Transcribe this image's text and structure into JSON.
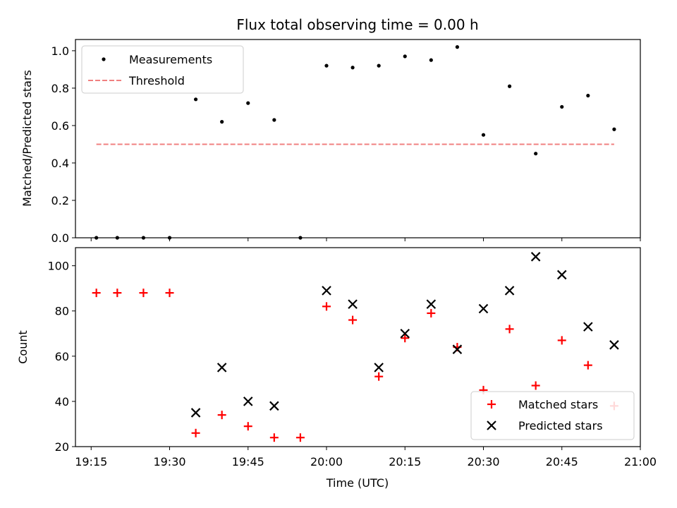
{
  "chart_data": [
    {
      "type": "scatter",
      "title": "Flux total observing time = 0.00 h",
      "xlabel": "",
      "ylabel": "Matched/Predicted stars",
      "ylim": [
        0,
        1.06
      ],
      "yticks": [
        "0.0",
        "0.2",
        "0.4",
        "0.6",
        "0.8",
        "1.0"
      ],
      "grid": false,
      "legend_position": "top-left",
      "colors": {
        "measurements": "#000000",
        "threshold": "#f08080"
      },
      "series": [
        {
          "name": "Measurements",
          "marker": "dot",
          "x": [
            "19:16",
            "19:20",
            "19:25",
            "19:30",
            "19:35",
            "19:40",
            "19:45",
            "19:50",
            "19:55",
            "20:00",
            "20:05",
            "20:10",
            "20:15",
            "20:20",
            "20:25",
            "20:30",
            "20:35",
            "20:40",
            "20:45",
            "20:50",
            "20:55"
          ],
          "y": [
            0.0,
            0.0,
            0.0,
            0.0,
            0.74,
            0.62,
            0.72,
            0.63,
            0.0,
            0.92,
            0.91,
            0.92,
            0.97,
            0.95,
            1.02,
            0.55,
            0.81,
            0.45,
            0.7,
            0.76,
            0.58
          ]
        },
        {
          "name": "Threshold",
          "style": "dashed-line",
          "x": [
            "19:16",
            "20:55"
          ],
          "y": [
            0.5,
            0.5
          ]
        }
      ]
    },
    {
      "type": "scatter",
      "title": "",
      "xlabel": "Time (UTC)",
      "ylabel": "Count",
      "ylim": [
        20,
        108
      ],
      "yticks": [
        "20",
        "40",
        "60",
        "80",
        "100"
      ],
      "xlim": [
        "19:12",
        "21:00"
      ],
      "xticks": [
        "19:15",
        "19:30",
        "19:45",
        "20:00",
        "20:15",
        "20:30",
        "20:45",
        "21:00"
      ],
      "grid": false,
      "legend_position": "bottom-right",
      "colors": {
        "matched": "#ff0000",
        "predicted": "#000000"
      },
      "series": [
        {
          "name": "Matched stars",
          "marker": "plus",
          "x": [
            "19:16",
            "19:20",
            "19:25",
            "19:30",
            "19:35",
            "19:40",
            "19:45",
            "19:50",
            "19:55",
            "20:00",
            "20:05",
            "20:10",
            "20:15",
            "20:20",
            "20:25",
            "20:30",
            "20:35",
            "20:40",
            "20:45",
            "20:50",
            "20:55"
          ],
          "y": [
            88,
            88,
            88,
            88,
            26,
            34,
            29,
            24,
            24,
            82,
            76,
            51,
            68,
            79,
            64,
            45,
            72,
            47,
            67,
            56,
            38
          ]
        },
        {
          "name": "Predicted stars",
          "marker": "x",
          "x": [
            "19:35",
            "19:40",
            "19:45",
            "19:50",
            "20:00",
            "20:05",
            "20:10",
            "20:15",
            "20:20",
            "20:25",
            "20:30",
            "20:35",
            "20:40",
            "20:45",
            "20:50",
            "20:55"
          ],
          "y": [
            35,
            55,
            40,
            38,
            89,
            83,
            55,
            70,
            83,
            63,
            81,
            89,
            104,
            96,
            73,
            65
          ]
        }
      ]
    }
  ]
}
